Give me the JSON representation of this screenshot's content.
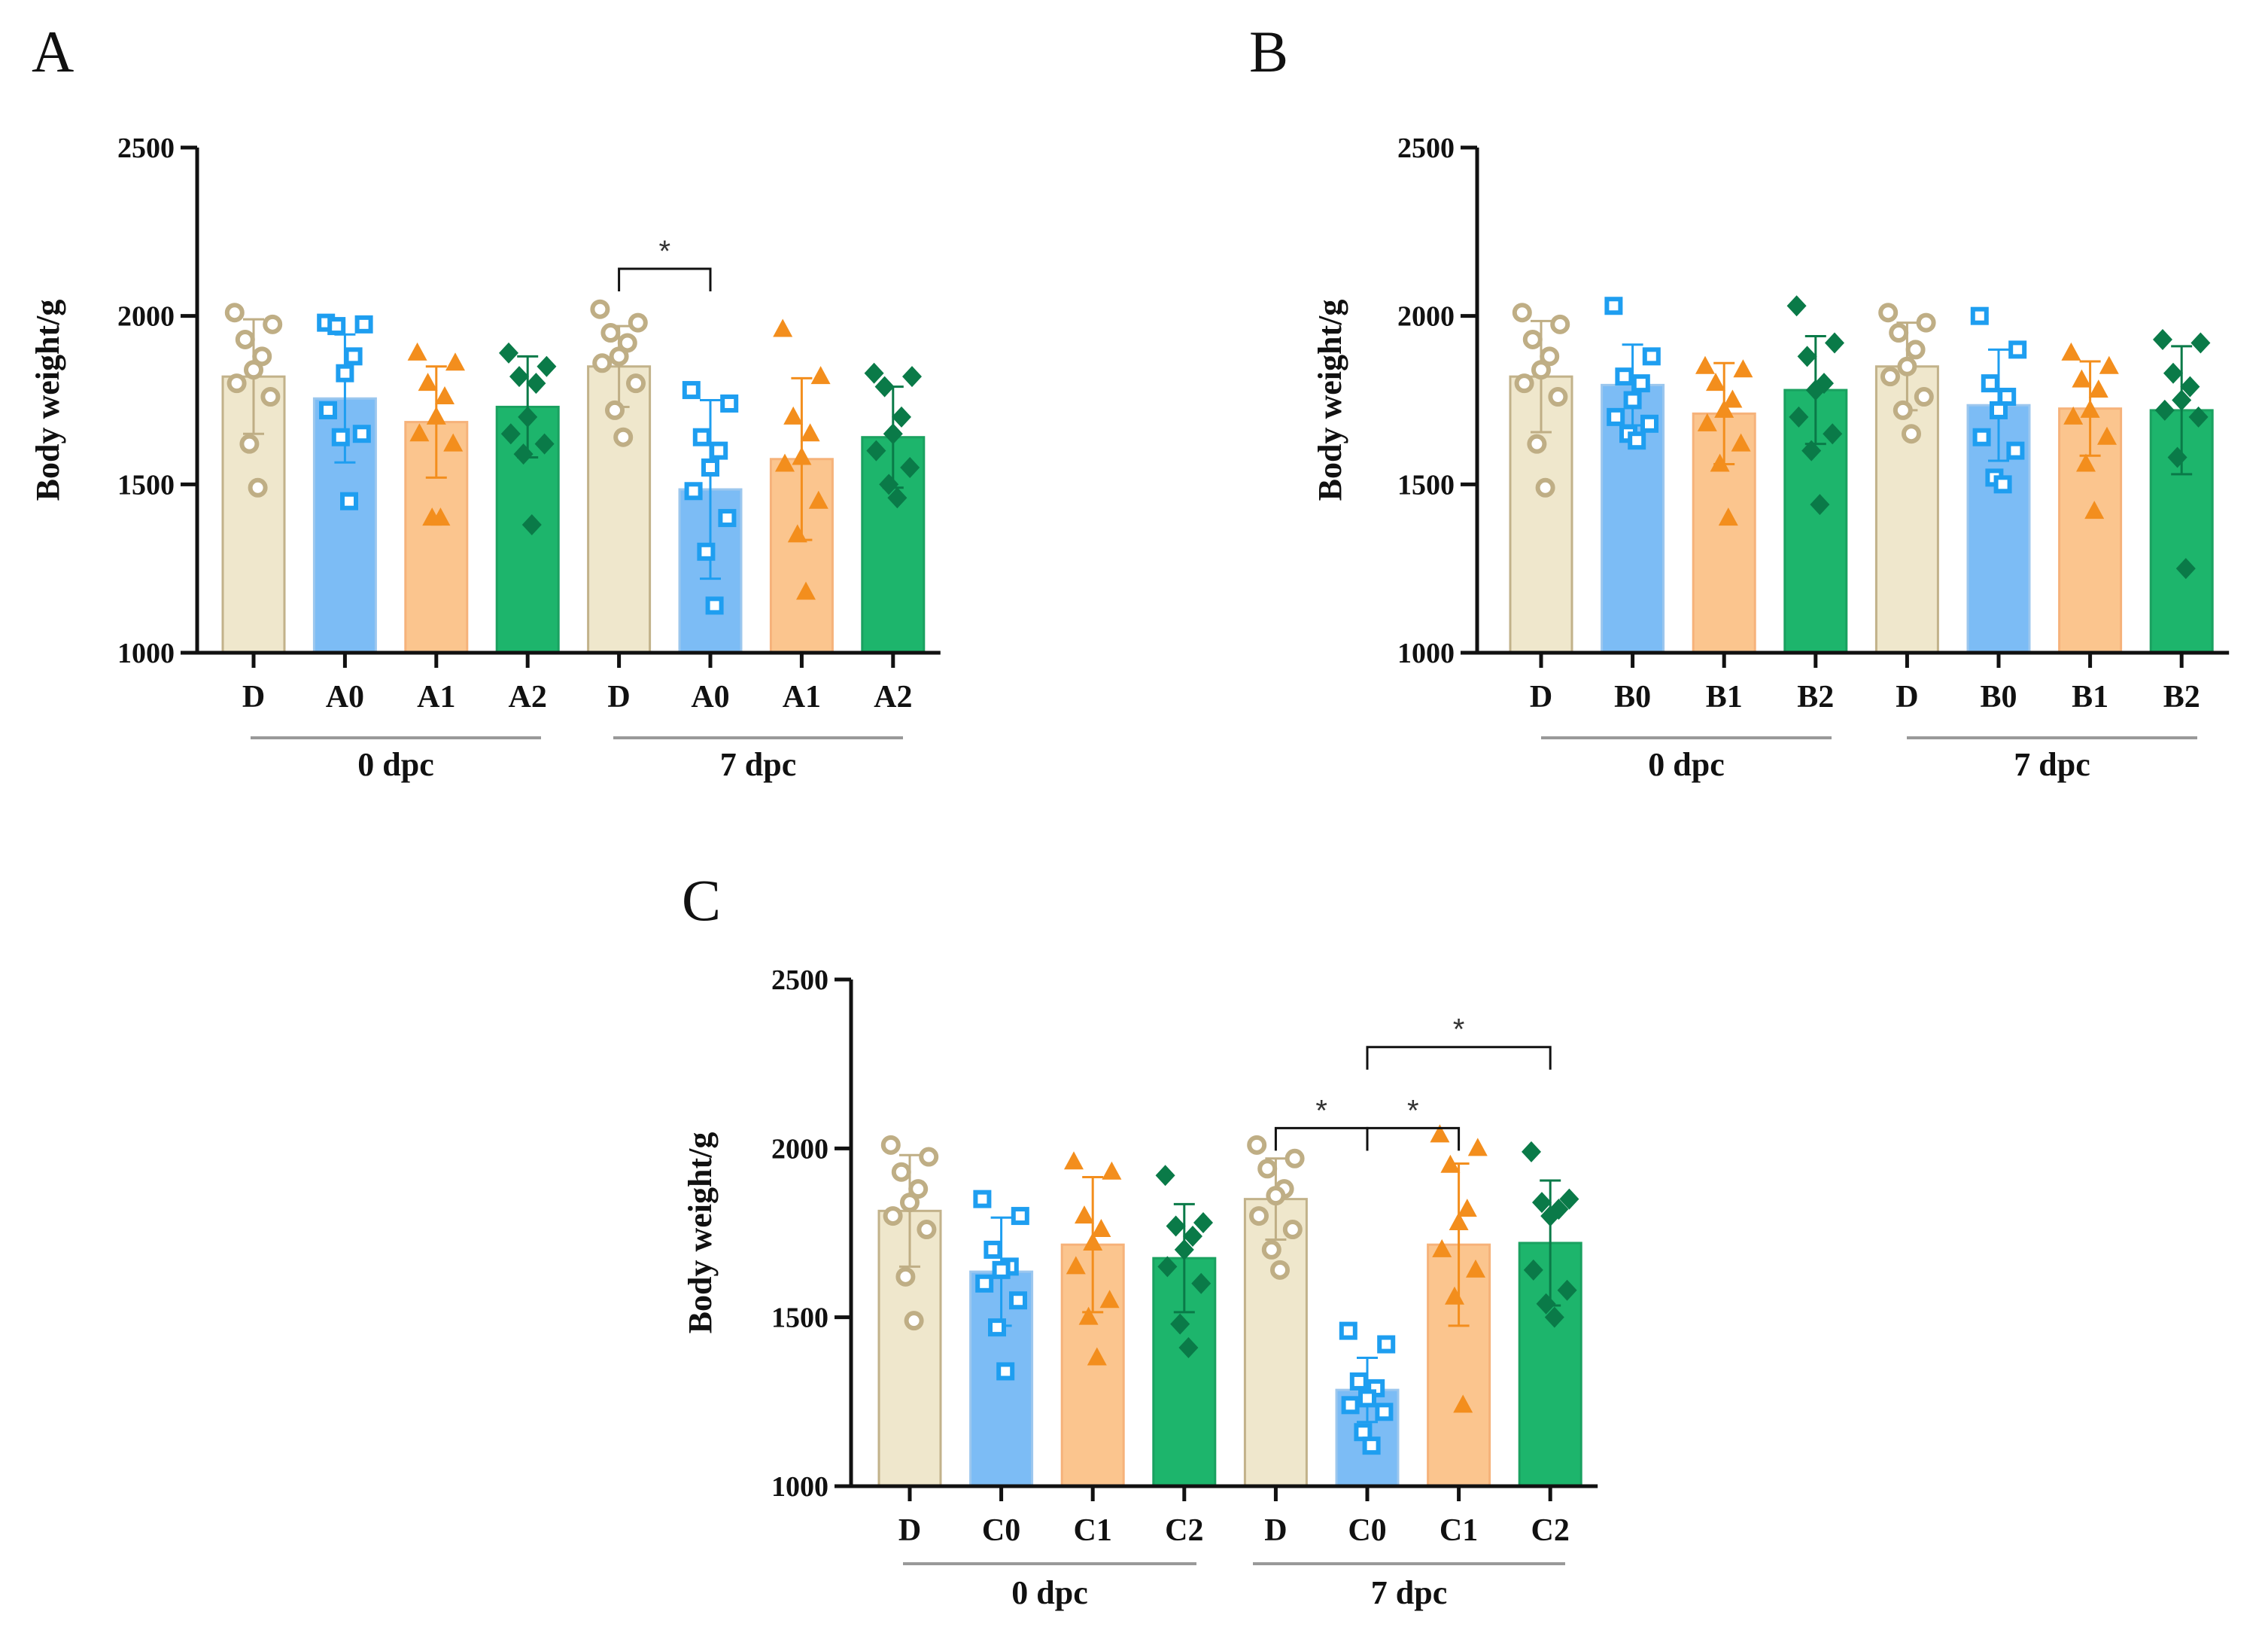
{
  "colors": {
    "D": {
      "fill": "#efe7cc",
      "edge": "#c2b28a",
      "marker": "#bfae85"
    },
    "0": {
      "fill": "#7cbcf5",
      "edge": "#9cc7ee",
      "marker": "#1e9ef0"
    },
    "1": {
      "fill": "#fbc58e",
      "edge": "#f6b27a",
      "marker": "#f38e1d"
    },
    "2": {
      "fill": "#1db56c",
      "edge": "#1aa160",
      "marker": "#0a7a48"
    }
  },
  "chart_data": [
    {
      "panel": "A",
      "type": "bar",
      "ylabel": "Body weight/g",
      "ylim": [
        1000,
        2500
      ],
      "yticks": [
        1000,
        1500,
        2000,
        2500
      ],
      "groups": [
        "0 dpc",
        "7 dpc"
      ],
      "categories": [
        "D",
        "A0",
        "A1",
        "A2",
        "D",
        "A0",
        "A1",
        "A2"
      ],
      "series_keys": [
        "D",
        "0",
        "1",
        "2",
        "D",
        "0",
        "1",
        "2"
      ],
      "values": [
        1820,
        1755,
        1685,
        1730,
        1850,
        1485,
        1575,
        1640
      ],
      "errors": [
        170,
        190,
        165,
        150,
        120,
        265,
        240,
        150
      ],
      "points": [
        [
          2010,
          1975,
          1930,
          1880,
          1840,
          1800,
          1760,
          1620,
          1490
        ],
        [
          1980,
          1975,
          1970,
          1880,
          1830,
          1720,
          1650,
          1640,
          1450
        ],
        [
          1890,
          1860,
          1800,
          1760,
          1700,
          1650,
          1620,
          1400,
          1400
        ],
        [
          1890,
          1850,
          1820,
          1800,
          1700,
          1650,
          1620,
          1590,
          1380
        ],
        [
          2020,
          1980,
          1950,
          1920,
          1880,
          1860,
          1800,
          1720,
          1640
        ],
        [
          1780,
          1740,
          1640,
          1600,
          1550,
          1480,
          1400,
          1300,
          1140
        ],
        [
          1960,
          1820,
          1700,
          1650,
          1580,
          1560,
          1450,
          1350,
          1180
        ],
        [
          1830,
          1820,
          1790,
          1700,
          1650,
          1600,
          1550,
          1500,
          1460
        ]
      ],
      "significance": [
        {
          "from": 4,
          "to": 5,
          "label": "*"
        }
      ]
    },
    {
      "panel": "B",
      "type": "bar",
      "ylabel": "Body weight/g",
      "ylim": [
        1000,
        2500
      ],
      "yticks": [
        1000,
        1500,
        2000,
        2500
      ],
      "groups": [
        "0 dpc",
        "7 dpc"
      ],
      "categories": [
        "D",
        "B0",
        "B1",
        "B2",
        "D",
        "B0",
        "B1",
        "B2"
      ],
      "series_keys": [
        "D",
        "0",
        "1",
        "2",
        "D",
        "0",
        "1",
        "2"
      ],
      "values": [
        1820,
        1795,
        1710,
        1780,
        1850,
        1735,
        1725,
        1720
      ],
      "errors": [
        165,
        120,
        150,
        160,
        130,
        165,
        140,
        190
      ],
      "points": [
        [
          2010,
          1975,
          1930,
          1880,
          1840,
          1800,
          1760,
          1620,
          1490
        ],
        [
          2030,
          1880,
          1820,
          1800,
          1750,
          1700,
          1680,
          1650,
          1630
        ],
        [
          1850,
          1840,
          1800,
          1750,
          1720,
          1680,
          1620,
          1560,
          1400
        ],
        [
          2030,
          1920,
          1880,
          1800,
          1780,
          1700,
          1650,
          1600,
          1440
        ],
        [
          2010,
          1980,
          1950,
          1900,
          1850,
          1820,
          1760,
          1720,
          1650
        ],
        [
          2000,
          1900,
          1800,
          1760,
          1720,
          1640,
          1600,
          1520,
          1500
        ],
        [
          1890,
          1850,
          1810,
          1780,
          1720,
          1700,
          1640,
          1560,
          1420
        ],
        [
          1930,
          1920,
          1830,
          1790,
          1750,
          1720,
          1700,
          1580,
          1250
        ]
      ],
      "significance": []
    },
    {
      "panel": "C",
      "type": "bar",
      "ylabel": "Body weight/g",
      "ylim": [
        1000,
        2500
      ],
      "yticks": [
        1000,
        1500,
        2000,
        2500
      ],
      "groups": [
        "0 dpc",
        "7 dpc"
      ],
      "categories": [
        "D",
        "C0",
        "C1",
        "C2",
        "D",
        "C0",
        "C1",
        "C2"
      ],
      "series_keys": [
        "D",
        "0",
        "1",
        "2",
        "D",
        "0",
        "1",
        "2"
      ],
      "values": [
        1815,
        1635,
        1715,
        1675,
        1850,
        1285,
        1715,
        1720
      ],
      "errors": [
        165,
        160,
        200,
        160,
        120,
        95,
        240,
        185
      ],
      "points": [
        [
          2010,
          1975,
          1930,
          1880,
          1840,
          1800,
          1760,
          1620,
          1490
        ],
        [
          1850,
          1800,
          1700,
          1650,
          1640,
          1600,
          1550,
          1470,
          1340
        ],
        [
          1960,
          1930,
          1800,
          1760,
          1720,
          1650,
          1550,
          1500,
          1380
        ],
        [
          1920,
          1780,
          1770,
          1740,
          1700,
          1650,
          1600,
          1480,
          1410
        ],
        [
          2010,
          1970,
          1940,
          1880,
          1860,
          1800,
          1760,
          1700,
          1640
        ],
        [
          1460,
          1420,
          1310,
          1290,
          1260,
          1240,
          1220,
          1160,
          1120
        ],
        [
          2040,
          2000,
          1950,
          1820,
          1780,
          1700,
          1640,
          1560,
          1240
        ],
        [
          1990,
          1850,
          1840,
          1820,
          1800,
          1640,
          1580,
          1540,
          1500
        ]
      ],
      "significance": [
        {
          "from": 4,
          "to": 5,
          "label": "*"
        },
        {
          "from": 5,
          "to": 6,
          "label": "*"
        },
        {
          "from": 5,
          "to": 7,
          "label": "*"
        }
      ]
    }
  ]
}
